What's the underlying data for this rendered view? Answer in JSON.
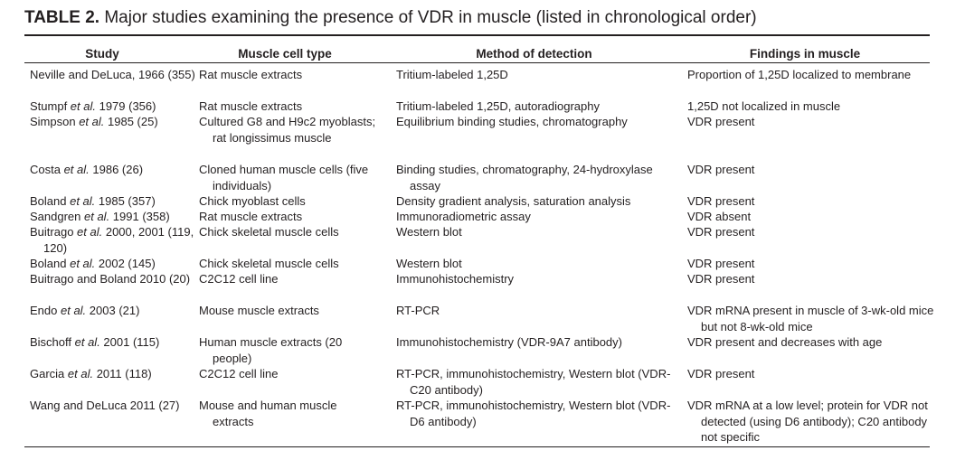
{
  "caption": {
    "label": "TABLE 2.",
    "text": "Major studies examining the presence of VDR in muscle (listed in chronological order)"
  },
  "headers": [
    "Study",
    "Muscle cell type",
    "Method of detection",
    "Findings in muscle"
  ],
  "rows": [
    {
      "study_pre": "Neville and DeLuca, 1966 (355)",
      "study_it": "",
      "study_post": "",
      "cell": "Rat muscle extracts",
      "method": "Tritium-labeled 1,25D",
      "finding": "Proportion of 1,25D localized to membrane"
    },
    {
      "study_pre": "Stumpf ",
      "study_it": "et al.",
      "study_post": " 1979 (356)",
      "cell": "Rat muscle extracts",
      "method": "Tritium-labeled 1,25D, autoradiography",
      "finding": "1,25D not localized in muscle"
    },
    {
      "study_pre": "Simpson ",
      "study_it": "et al.",
      "study_post": " 1985 (25)",
      "cell": "Cultured G8 and H9c2 myoblasts; rat longissimus muscle",
      "method": "Equilibrium binding studies, chromatography",
      "finding": "VDR present"
    },
    {
      "study_pre": "Costa ",
      "study_it": "et al.",
      "study_post": " 1986 (26)",
      "cell": "Cloned human muscle cells (five individuals)",
      "method": "Binding studies, chromatography, 24-hydroxylase assay",
      "finding": "VDR present"
    },
    {
      "study_pre": "Boland ",
      "study_it": "et al.",
      "study_post": " 1985 (357)",
      "cell": "Chick myoblast cells",
      "method": "Density gradient analysis, saturation analysis",
      "finding": "VDR present"
    },
    {
      "study_pre": "Sandgren ",
      "study_it": "et al.",
      "study_post": " 1991 (358)",
      "cell": "Rat muscle extracts",
      "method": "Immunoradiometric assay",
      "finding": "VDR absent"
    },
    {
      "study_pre": "Buitrago ",
      "study_it": "et al.",
      "study_post": " 2000, 2001 (119, 120)",
      "cell": "Chick skeletal muscle cells",
      "method": "Western blot",
      "finding": "VDR present"
    },
    {
      "study_pre": "Boland ",
      "study_it": "et al.",
      "study_post": " 2002 (145)",
      "cell": "Chick skeletal muscle cells",
      "method": "Western blot",
      "finding": "VDR present"
    },
    {
      "study_pre": "Buitrago and Boland 2010 (20)",
      "study_it": "",
      "study_post": "",
      "cell": "C2C12 cell line",
      "method": "Immunohistochemistry",
      "finding": "VDR present"
    },
    {
      "study_pre": "Endo ",
      "study_it": "et al.",
      "study_post": " 2003 (21)",
      "cell": "Mouse muscle extracts",
      "method": "RT-PCR",
      "finding": "VDR mRNA present in muscle of 3-wk-old mice but not 8-wk-old mice"
    },
    {
      "study_pre": "Bischoff ",
      "study_it": "et al.",
      "study_post": " 2001 (115)",
      "cell": "Human muscle extracts (20 people)",
      "method": "Immunohistochemistry (VDR-9A7 antibody)",
      "finding": "VDR present and decreases with age"
    },
    {
      "study_pre": "Garcia ",
      "study_it": "et al.",
      "study_post": " 2011 (118)",
      "cell": "C2C12 cell line",
      "method": "RT-PCR, immunohistochemistry, Western blot (VDR-C20 antibody)",
      "finding": "VDR present"
    },
    {
      "study_pre": "Wang and DeLuca 2011 (27)",
      "study_it": "",
      "study_post": "",
      "cell": "Mouse and human muscle extracts",
      "method": "RT-PCR, immunohistochemistry, Western blot (VDR-D6 antibody)",
      "finding": "VDR mRNA at a low level; protein for VDR not detected (using D6 antibody); C20 antibody not specific"
    }
  ]
}
